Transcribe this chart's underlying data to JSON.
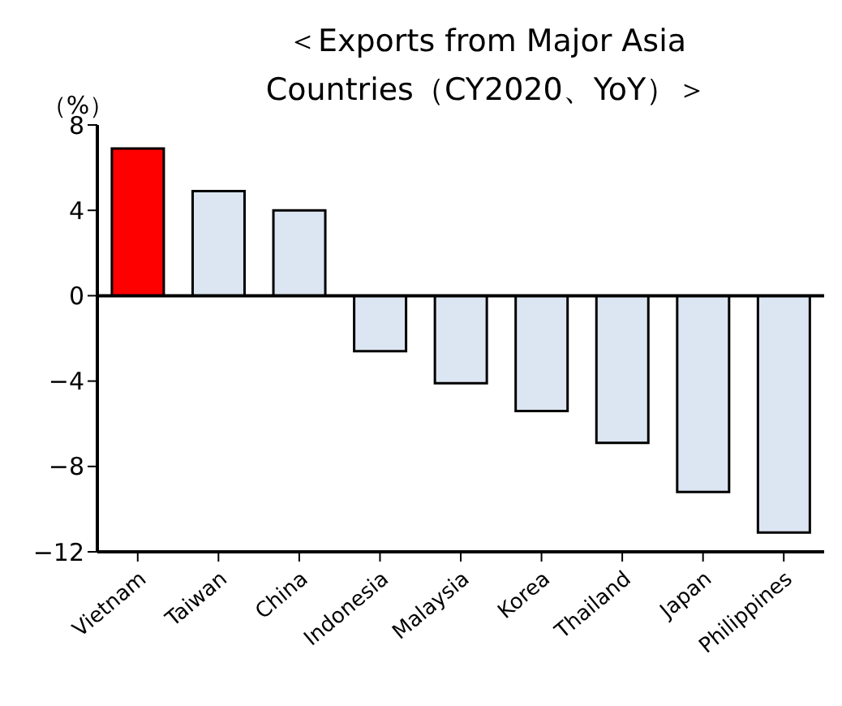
{
  "chart_data": {
    "type": "bar",
    "title": "＜Exports from Major Asia Countries（CY2020、YoY）＞",
    "ylabel": "（%）",
    "categories": [
      "Vietnam",
      "Taiwan",
      "China",
      "Indonesia",
      "Malaysia",
      "Korea",
      "Thailand",
      "Japan",
      "Philippines"
    ],
    "values": [
      6.9,
      4.9,
      4.0,
      -2.6,
      -4.1,
      -5.4,
      -6.9,
      -9.2,
      -11.1
    ],
    "colors": [
      "#ff0000",
      "#dce6f2",
      "#dce6f2",
      "#dce6f2",
      "#dce6f2",
      "#dce6f2",
      "#dce6f2",
      "#dce6f2",
      "#dce6f2"
    ],
    "ylim": [
      -12,
      8
    ],
    "yticks": [
      -12,
      -8,
      -4,
      0,
      4,
      8
    ],
    "legend": false
  }
}
